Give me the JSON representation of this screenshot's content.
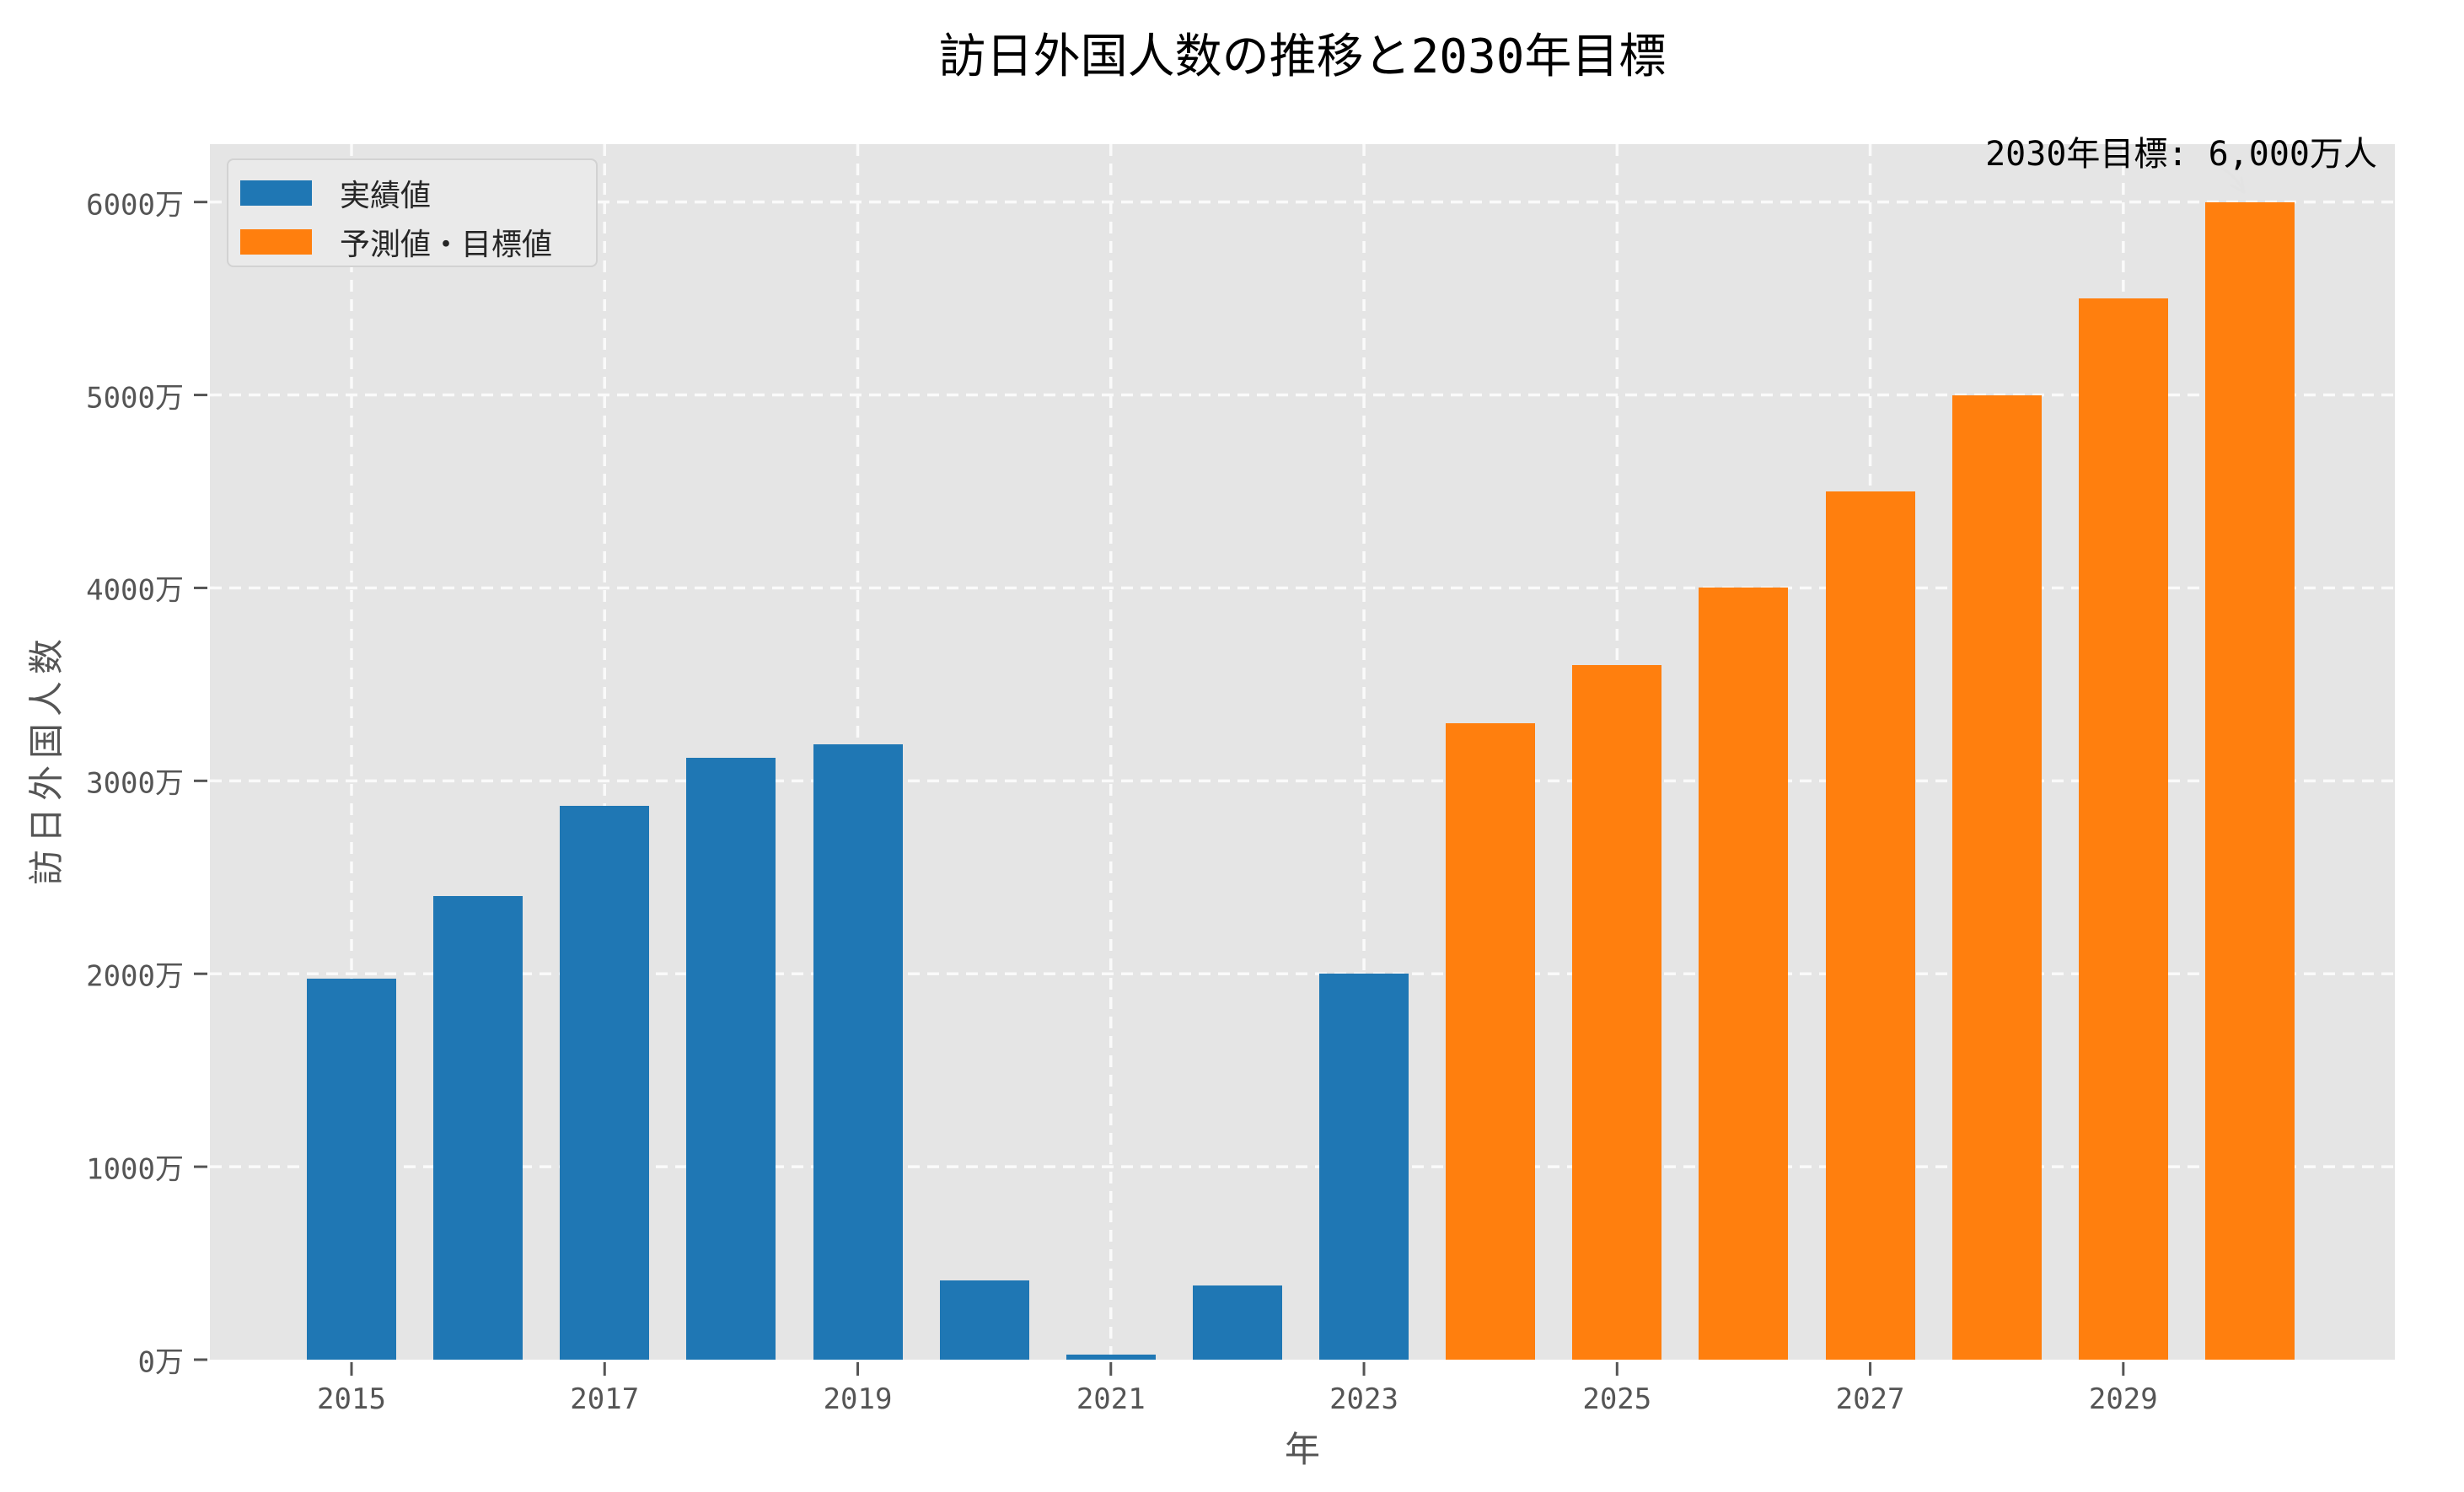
{
  "title": "訪日外国人数の推移と2030年目標",
  "annotation": {
    "target_label": "2030年目標: 6,000万人"
  },
  "legend": {
    "items": [
      {
        "label": "実績値",
        "color": "#1f77b4"
      },
      {
        "label": "予測値・目標値",
        "color": "#ff7f0e"
      }
    ]
  },
  "x_axis": {
    "label": "年",
    "tick_years": [
      2015,
      2017,
      2019,
      2021,
      2023,
      2025,
      2027,
      2029
    ]
  },
  "y_axis": {
    "label": "訪日外国人数",
    "ticks": [
      {
        "value": 0,
        "label": "0万"
      },
      {
        "value": 1000,
        "label": "1000万"
      },
      {
        "value": 2000,
        "label": "2000万"
      },
      {
        "value": 3000,
        "label": "3000万"
      },
      {
        "value": 4000,
        "label": "4000万"
      },
      {
        "value": 5000,
        "label": "5000万"
      },
      {
        "value": 6000,
        "label": "6000万"
      }
    ]
  },
  "colors": {
    "actual": "#1f77b4",
    "forecast": "#ff7f0e",
    "plot_background": "#e5e5e5",
    "gridline": "#fafafa",
    "tick_text": "#555555",
    "title_text": "#000000"
  },
  "chart_data": {
    "type": "bar",
    "x": [
      2015,
      2016,
      2017,
      2018,
      2019,
      2020,
      2021,
      2022,
      2023,
      2024,
      2025,
      2026,
      2027,
      2028,
      2029,
      2030
    ],
    "series": [
      {
        "name": "実績値",
        "color": "#1f77b4",
        "values": [
          1974,
          2404,
          2869,
          3119,
          3188,
          412,
          25,
          383,
          2000,
          null,
          null,
          null,
          null,
          null,
          null,
          null
        ]
      },
      {
        "name": "予測値・目標値",
        "color": "#ff7f0e",
        "values": [
          null,
          null,
          null,
          null,
          null,
          null,
          null,
          null,
          null,
          3300,
          3600,
          4000,
          4500,
          5000,
          5500,
          6000
        ]
      }
    ],
    "title": "訪日外国人数の推移と2030年目標",
    "xlabel": "年",
    "ylabel": "訪日外国人数",
    "y_unit": "万人",
    "ylim": [
      0,
      6300
    ],
    "y_tick_step": 1000,
    "grid": true,
    "grid_style": "white dashed",
    "legend_position": "upper left",
    "annotation": {
      "text": "2030年目標: 6,000万人",
      "points_to_year": 2030
    }
  }
}
